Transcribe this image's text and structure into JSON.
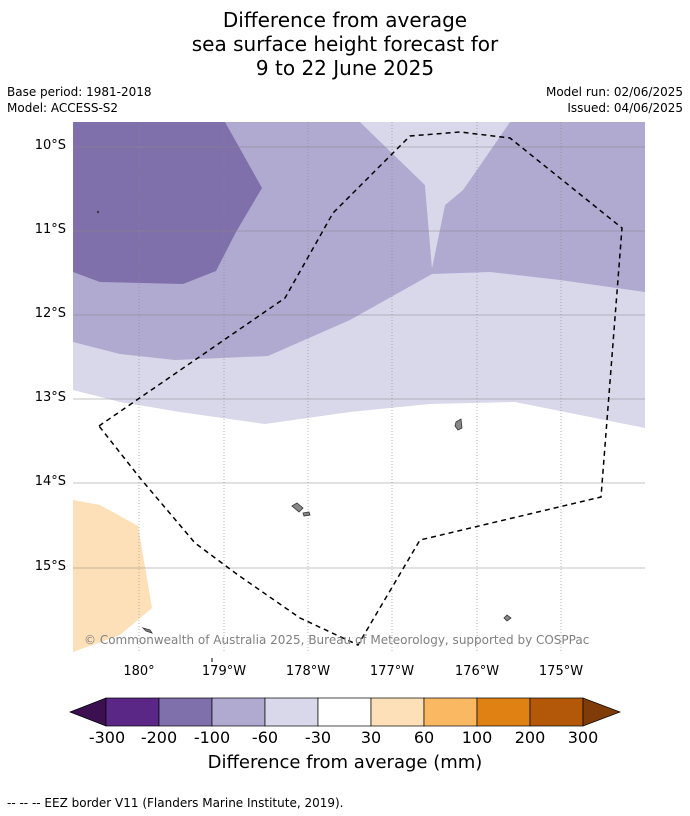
{
  "title": {
    "line1": "Difference from average",
    "line2": "sea surface height forecast for",
    "line3": "9 to 22 June 2025"
  },
  "meta": {
    "base_period": "Base period: 1981-2018",
    "model": "Model: ACCESS-S2",
    "model_run": "Model run: 02/06/2025",
    "issued": "Issued: 04/06/2025"
  },
  "map": {
    "lat_labels": [
      "10°S",
      "11°S",
      "12°S",
      "13°S",
      "14°S",
      "15°S"
    ],
    "lon_labels": [
      "180°",
      "179°W",
      "178°W",
      "177°W",
      "176°W",
      "175°W"
    ],
    "copyright": "© Commonwealth of Australia 2025, Bureau of Meteorology, supported by COSPPac",
    "colors": {
      "m300": "#3c0f50",
      "m200": "#5a2787",
      "m100": "#7f70ab",
      "m60": "#b0a9d0",
      "m30": "#d8d8ea",
      "zero": "#ffffff",
      "p30": "#fde0b7",
      "p60": "#fbb863",
      "p100": "#e08213",
      "p200": "#b35808",
      "p300": "#7f3b08"
    }
  },
  "colorbar": {
    "labels": [
      "-300",
      "-200",
      "-100",
      "-60",
      "-30",
      "30",
      "60",
      "100",
      "200",
      "300"
    ],
    "title": "Difference from average (mm)"
  },
  "footnote": "--  --  -- EEZ border V11 (Flanders Marine Institute, 2019)."
}
